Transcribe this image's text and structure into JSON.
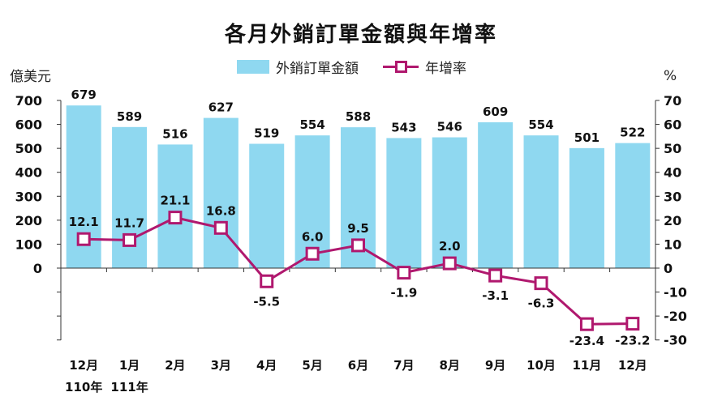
{
  "title": "各月外銷訂單金額與年增率",
  "legend": {
    "bar_label": "外銷訂單金額",
    "line_label": "年增率"
  },
  "units": {
    "left": "億美元",
    "right": "%"
  },
  "colors": {
    "bar": "#8fd8f0",
    "line": "#b0186e",
    "text": "#111111"
  },
  "chart_data": {
    "type": "bar",
    "title": "各月外銷訂單金額與年增率",
    "categories": [
      "12月",
      "1月",
      "2月",
      "3月",
      "4月",
      "5月",
      "6月",
      "7月",
      "8月",
      "9月",
      "10月",
      "11月",
      "12月"
    ],
    "year_labels": [
      "110年",
      "111年"
    ],
    "series": [
      {
        "name": "外銷訂單金額",
        "type": "bar",
        "axis": "left",
        "values": [
          679,
          589,
          516,
          627,
          519,
          554,
          588,
          543,
          546,
          609,
          554,
          501,
          522
        ]
      },
      {
        "name": "年增率",
        "type": "line",
        "axis": "right",
        "values": [
          12.1,
          11.7,
          21.1,
          16.8,
          -5.5,
          6.0,
          9.5,
          -1.9,
          2.0,
          -3.1,
          -6.3,
          -23.4,
          -23.2
        ],
        "labels": [
          "12.1",
          "11.7",
          "21.1",
          "16.8",
          "-5.5",
          "6.0",
          "9.5",
          "-1.9",
          "2.0",
          "-3.1",
          "-6.3",
          "-23.4",
          "-23.2"
        ]
      }
    ],
    "left_axis": {
      "min": -300,
      "max": 700,
      "ticks": [
        700,
        600,
        500,
        400,
        300,
        200,
        100,
        0
      ]
    },
    "right_axis": {
      "min": -30,
      "max": 70,
      "ticks": [
        70,
        60,
        50,
        40,
        30,
        20,
        10,
        0,
        -10,
        -20,
        -30
      ]
    },
    "grid": false,
    "legend_position": "top"
  }
}
